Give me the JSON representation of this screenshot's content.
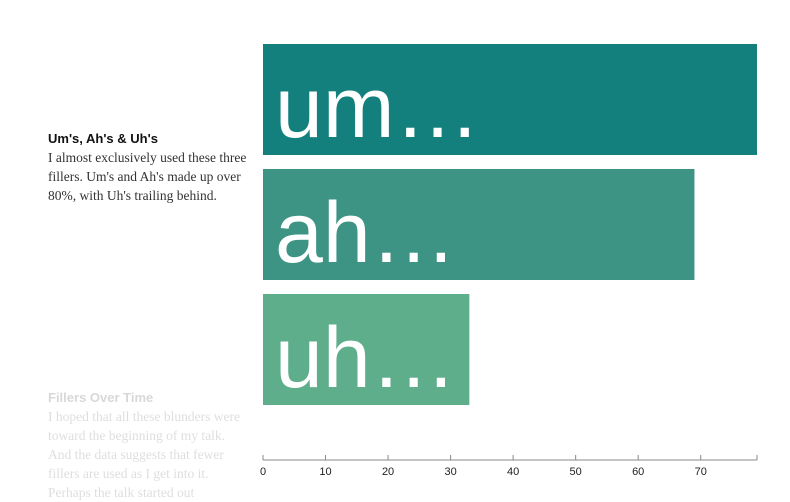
{
  "sidebar": {
    "sections": [
      {
        "title": "Um's, Ah's & Uh's",
        "body": "I almost exclusively used these three fillers. Um's and Ah's made up over 80%, with Uh's trailing behind."
      },
      {
        "title": "Fillers Over Time",
        "body": "I hoped that all these blunders were toward the beginning of my talk. And the data suggests that fewer fillers are used as I get into it. Perhaps the talk started out"
      }
    ]
  },
  "chart_data": {
    "type": "bar",
    "orientation": "horizontal",
    "categories": [
      "um…",
      "ah…",
      "uh…"
    ],
    "values": [
      79,
      69,
      33
    ],
    "colors": [
      "#13807d",
      "#3d9485",
      "#5eae8b"
    ],
    "xlim": [
      0,
      79
    ],
    "ticks": [
      0,
      10,
      20,
      30,
      40,
      50,
      60,
      70
    ],
    "title": "",
    "xlabel": "",
    "ylabel": ""
  }
}
